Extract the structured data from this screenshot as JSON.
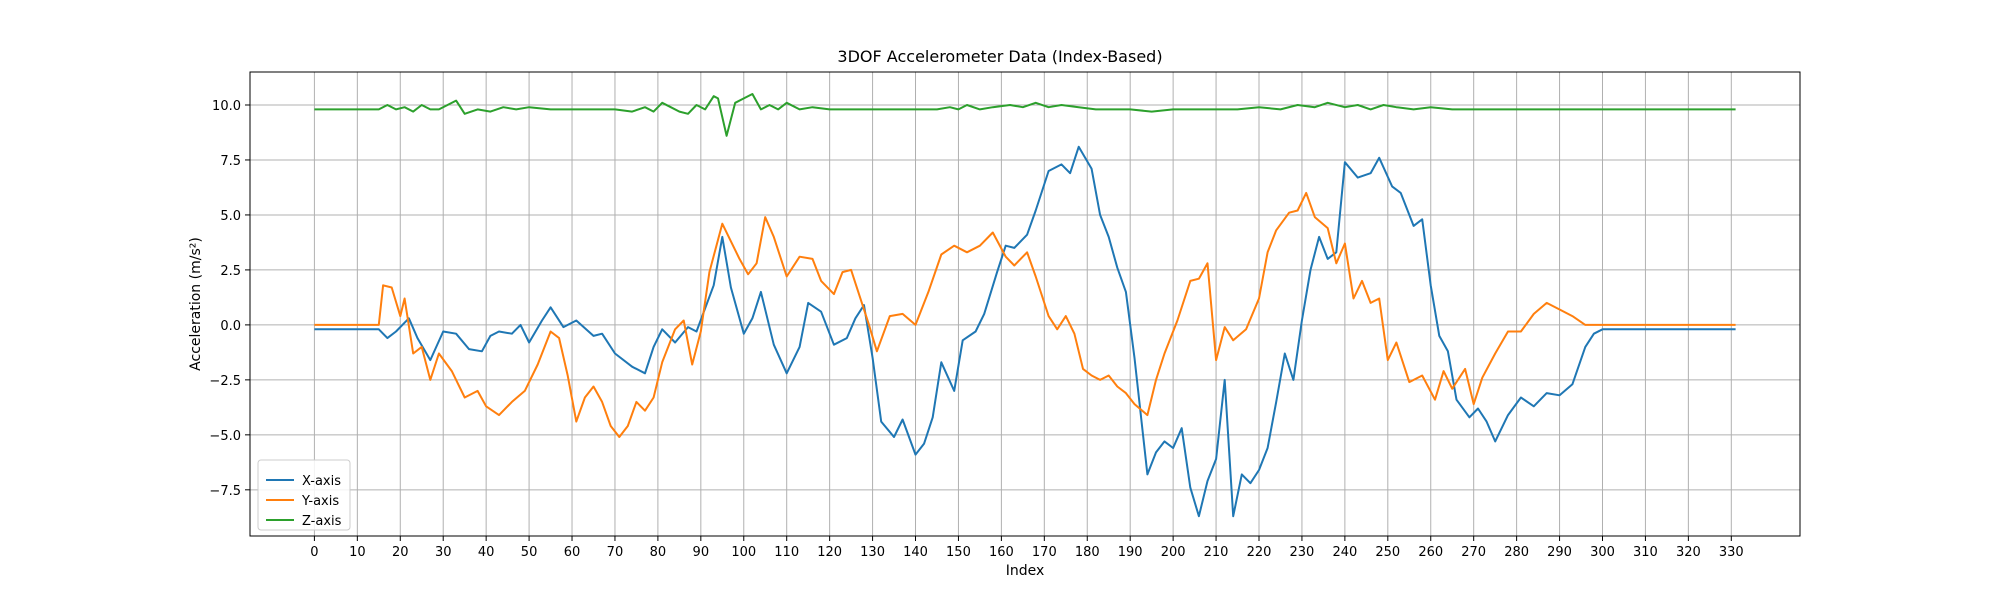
{
  "chart_data": {
    "type": "line",
    "title": "3DOF Accelerometer Data (Index-Based)",
    "xlabel": "Index",
    "ylabel": "Acceleration (m/s²)",
    "xlim": [
      -15,
      346
    ],
    "ylim": [
      -9.6,
      11.5
    ],
    "xticks": [
      0,
      10,
      20,
      30,
      40,
      50,
      60,
      70,
      80,
      90,
      100,
      110,
      120,
      130,
      140,
      150,
      160,
      170,
      180,
      190,
      200,
      210,
      220,
      230,
      240,
      250,
      260,
      270,
      280,
      290,
      300,
      310,
      320,
      330
    ],
    "yticks": [
      -7.5,
      -5.0,
      -2.5,
      0.0,
      2.5,
      5.0,
      7.5,
      10.0
    ],
    "ytick_labels": [
      "−7.5",
      "−5.0",
      "−2.5",
      "0.0",
      "2.5",
      "5.0",
      "7.5",
      "10.0"
    ],
    "grid": true,
    "legend_position": "bottom-left",
    "series": [
      {
        "name": "X-axis",
        "color": "#1f77b4",
        "x": [
          0,
          5,
          10,
          15,
          17,
          19,
          21,
          22,
          24,
          27,
          30,
          33,
          36,
          39,
          41,
          43,
          46,
          48,
          50,
          53,
          55,
          58,
          61,
          65,
          67,
          70,
          74,
          77,
          79,
          81,
          84,
          87,
          89,
          93,
          95,
          97,
          100,
          102,
          104,
          107,
          110,
          113,
          115,
          118,
          121,
          124,
          126,
          128,
          130,
          132,
          135,
          137,
          140,
          142,
          144,
          146,
          149,
          151,
          154,
          156,
          159,
          161,
          163,
          166,
          168,
          171,
          174,
          176,
          178,
          181,
          183,
          185,
          187,
          189,
          191,
          194,
          196,
          198,
          200,
          202,
          204,
          206,
          208,
          210,
          212,
          214,
          216,
          218,
          220,
          222,
          224,
          226,
          228,
          230,
          232,
          234,
          236,
          238,
          240,
          243,
          246,
          248,
          251,
          253,
          256,
          258,
          260,
          262,
          264,
          266,
          269,
          271,
          273,
          275,
          278,
          281,
          284,
          287,
          290,
          293,
          296,
          298,
          300,
          305,
          310,
          315,
          320,
          325,
          331
        ],
        "y": [
          -0.2,
          -0.2,
          -0.2,
          -0.2,
          -0.6,
          -0.3,
          0.1,
          0.3,
          -0.6,
          -1.6,
          -0.3,
          -0.4,
          -1.1,
          -1.2,
          -0.5,
          -0.3,
          -0.4,
          0.0,
          -0.8,
          0.2,
          0.8,
          -0.1,
          0.2,
          -0.5,
          -0.4,
          -1.3,
          -1.9,
          -2.2,
          -1.0,
          -0.2,
          -0.8,
          -0.1,
          -0.3,
          1.8,
          4.0,
          1.7,
          -0.4,
          0.3,
          1.5,
          -0.9,
          -2.2,
          -1.0,
          1.0,
          0.6,
          -0.9,
          -0.6,
          0.3,
          0.9,
          -1.5,
          -4.4,
          -5.1,
          -4.3,
          -5.9,
          -5.4,
          -4.2,
          -1.7,
          -3.0,
          -0.7,
          -0.3,
          0.5,
          2.4,
          3.6,
          3.5,
          4.1,
          5.2,
          7.0,
          7.3,
          6.9,
          8.1,
          7.1,
          5.0,
          4.0,
          2.6,
          1.5,
          -1.5,
          -6.8,
          -5.8,
          -5.3,
          -5.6,
          -4.7,
          -7.4,
          -8.7,
          -7.1,
          -6.1,
          -2.5,
          -8.7,
          -6.8,
          -7.2,
          -6.6,
          -5.6,
          -3.5,
          -1.3,
          -2.5,
          0.2,
          2.5,
          4.0,
          3.0,
          3.3,
          7.4,
          6.7,
          6.9,
          7.6,
          6.3,
          6.0,
          4.5,
          4.8,
          1.8,
          -0.5,
          -1.2,
          -3.4,
          -4.2,
          -3.8,
          -4.4,
          -5.3,
          -4.1,
          -3.3,
          -3.7,
          -3.1,
          -3.2,
          -2.7,
          -1.0,
          -0.4,
          -0.2,
          -0.2,
          -0.2,
          -0.2,
          -0.2,
          -0.2,
          -0.2
        ]
      },
      {
        "name": "Y-axis",
        "color": "#ff7f0e",
        "x": [
          0,
          5,
          10,
          15,
          16,
          18,
          20,
          21,
          23,
          25,
          27,
          29,
          32,
          35,
          38,
          40,
          43,
          46,
          49,
          52,
          55,
          57,
          59,
          61,
          63,
          65,
          67,
          69,
          71,
          73,
          75,
          77,
          79,
          81,
          84,
          86,
          88,
          90,
          92,
          95,
          97,
          99,
          101,
          103,
          105,
          107,
          110,
          113,
          116,
          118,
          121,
          123,
          125,
          127,
          129,
          131,
          134,
          137,
          140,
          143,
          146,
          149,
          152,
          155,
          158,
          161,
          163,
          166,
          168,
          171,
          173,
          175,
          177,
          179,
          181,
          183,
          185,
          187,
          189,
          191,
          194,
          196,
          198,
          201,
          204,
          206,
          208,
          210,
          212,
          214,
          217,
          220,
          222,
          224,
          227,
          229,
          231,
          233,
          236,
          238,
          240,
          242,
          244,
          246,
          248,
          250,
          252,
          255,
          258,
          261,
          263,
          265,
          268,
          270,
          272,
          275,
          278,
          281,
          284,
          287,
          290,
          293,
          296,
          300,
          305,
          310,
          315,
          320,
          325,
          331
        ],
        "y": [
          0.0,
          0.0,
          0.0,
          0.0,
          1.8,
          1.7,
          0.4,
          1.2,
          -1.3,
          -1.0,
          -2.5,
          -1.3,
          -2.1,
          -3.3,
          -3.0,
          -3.7,
          -4.1,
          -3.5,
          -3.0,
          -1.8,
          -0.3,
          -0.6,
          -2.3,
          -4.4,
          -3.3,
          -2.8,
          -3.5,
          -4.6,
          -5.1,
          -4.6,
          -3.5,
          -3.9,
          -3.3,
          -1.7,
          -0.2,
          0.2,
          -1.8,
          -0.3,
          2.4,
          4.6,
          3.8,
          3.0,
          2.3,
          2.8,
          4.9,
          4.0,
          2.2,
          3.1,
          3.0,
          2.0,
          1.4,
          2.4,
          2.5,
          1.3,
          0.1,
          -1.2,
          0.4,
          0.5,
          0.0,
          1.5,
          3.2,
          3.6,
          3.3,
          3.6,
          4.2,
          3.1,
          2.7,
          3.3,
          2.2,
          0.4,
          -0.2,
          0.4,
          -0.4,
          -2.0,
          -2.3,
          -2.5,
          -2.3,
          -2.8,
          -3.1,
          -3.6,
          -4.1,
          -2.5,
          -1.3,
          0.2,
          2.0,
          2.1,
          2.8,
          -1.6,
          -0.1,
          -0.7,
          -0.2,
          1.2,
          3.3,
          4.3,
          5.1,
          5.2,
          6.0,
          4.9,
          4.4,
          2.8,
          3.7,
          1.2,
          2.0,
          1.0,
          1.2,
          -1.6,
          -0.8,
          -2.6,
          -2.3,
          -3.4,
          -2.1,
          -2.9,
          -2.0,
          -3.6,
          -2.4,
          -1.3,
          -0.3,
          -0.3,
          0.5,
          1.0,
          0.7,
          0.4,
          0.0,
          0.0,
          0.0,
          0.0,
          0.0,
          0.0,
          0.0,
          0.0
        ]
      },
      {
        "name": "Z-axis",
        "color": "#2ca02c",
        "x": [
          0,
          5,
          10,
          15,
          17,
          19,
          21,
          23,
          25,
          27,
          29,
          31,
          33,
          35,
          38,
          41,
          44,
          47,
          50,
          55,
          60,
          65,
          70,
          74,
          77,
          79,
          81,
          83,
          85,
          87,
          89,
          91,
          93,
          94,
          96,
          98,
          100,
          102,
          104,
          106,
          108,
          110,
          113,
          116,
          120,
          125,
          130,
          135,
          140,
          145,
          148,
          150,
          152,
          155,
          158,
          162,
          165,
          168,
          171,
          174,
          178,
          182,
          186,
          190,
          195,
          200,
          205,
          210,
          215,
          220,
          225,
          229,
          233,
          236,
          240,
          243,
          246,
          249,
          252,
          256,
          260,
          265,
          270,
          275,
          280,
          285,
          290,
          300,
          310,
          320,
          331
        ],
        "y": [
          9.8,
          9.8,
          9.8,
          9.8,
          10.0,
          9.8,
          9.9,
          9.7,
          10.0,
          9.8,
          9.8,
          10.0,
          10.2,
          9.6,
          9.8,
          9.7,
          9.9,
          9.8,
          9.9,
          9.8,
          9.8,
          9.8,
          9.8,
          9.7,
          9.9,
          9.7,
          10.1,
          9.9,
          9.7,
          9.6,
          10.0,
          9.8,
          10.4,
          10.3,
          8.6,
          10.1,
          10.3,
          10.5,
          9.8,
          10.0,
          9.8,
          10.1,
          9.8,
          9.9,
          9.8,
          9.8,
          9.8,
          9.8,
          9.8,
          9.8,
          9.9,
          9.8,
          10.0,
          9.8,
          9.9,
          10.0,
          9.9,
          10.1,
          9.9,
          10.0,
          9.9,
          9.8,
          9.8,
          9.8,
          9.7,
          9.8,
          9.8,
          9.8,
          9.8,
          9.9,
          9.8,
          10.0,
          9.9,
          10.1,
          9.9,
          10.0,
          9.8,
          10.0,
          9.9,
          9.8,
          9.9,
          9.8,
          9.8,
          9.8,
          9.8,
          9.8,
          9.8,
          9.8,
          9.8,
          9.8,
          9.8
        ]
      }
    ]
  }
}
